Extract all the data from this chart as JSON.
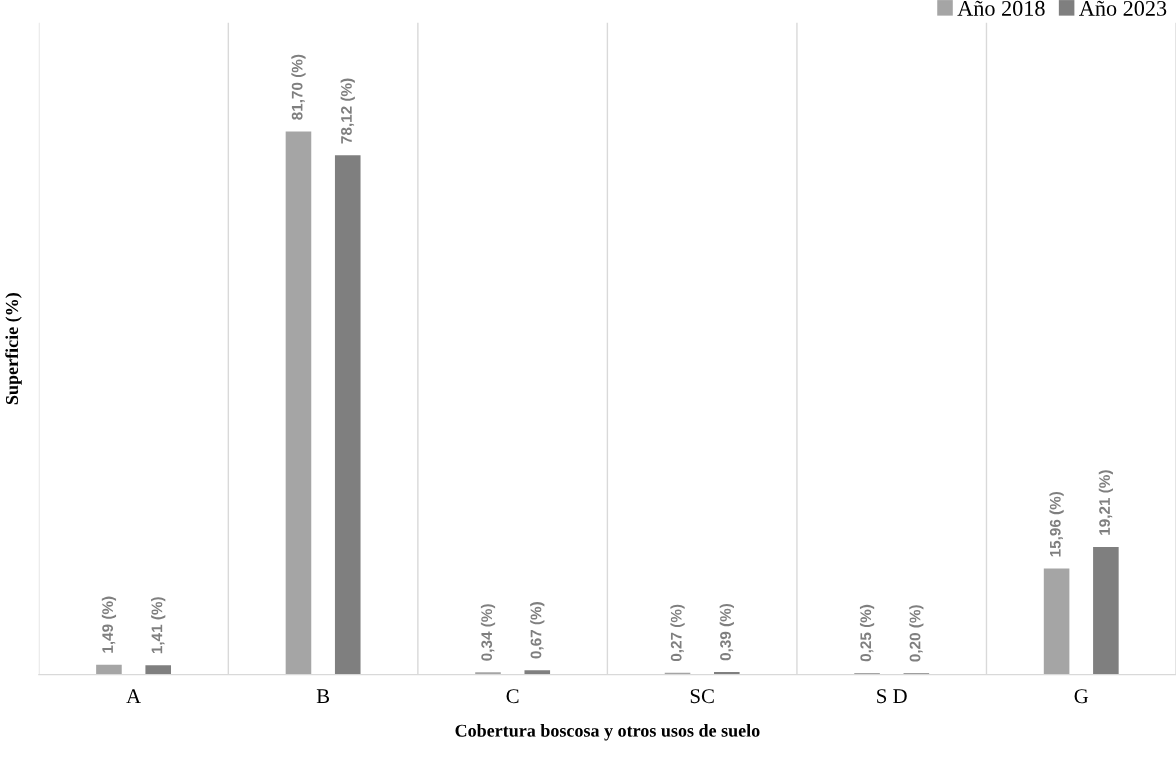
{
  "chart_data": {
    "type": "bar",
    "xlabel": "Cobertura boscosa y otros usos de suelo",
    "ylabel": "Superficie (%)",
    "categories": [
      "A",
      "B",
      "C",
      "SC",
      "S D",
      "G"
    ],
    "series": [
      {
        "name": "Año 2018",
        "color": "#a5a5a5",
        "values": [
          1.49,
          81.7,
          0.34,
          0.27,
          0.25,
          15.96
        ],
        "value_labels": [
          "1,49 (%)",
          "81,70 (%)",
          "0,34 (%)",
          "0,27 (%)",
          "0,25 (%)",
          "15,96 (%)"
        ]
      },
      {
        "name": "Año 2023",
        "color": "#7f7f7f",
        "values": [
          1.41,
          78.12,
          0.67,
          0.39,
          0.2,
          19.21
        ],
        "value_labels": [
          "1,41 (%)",
          "78,12 (%)",
          "0,67 (%)",
          "0,39 (%)",
          "0,20 (%)",
          "19,21 (%)"
        ]
      }
    ],
    "grid": "x",
    "legend": "top right"
  }
}
